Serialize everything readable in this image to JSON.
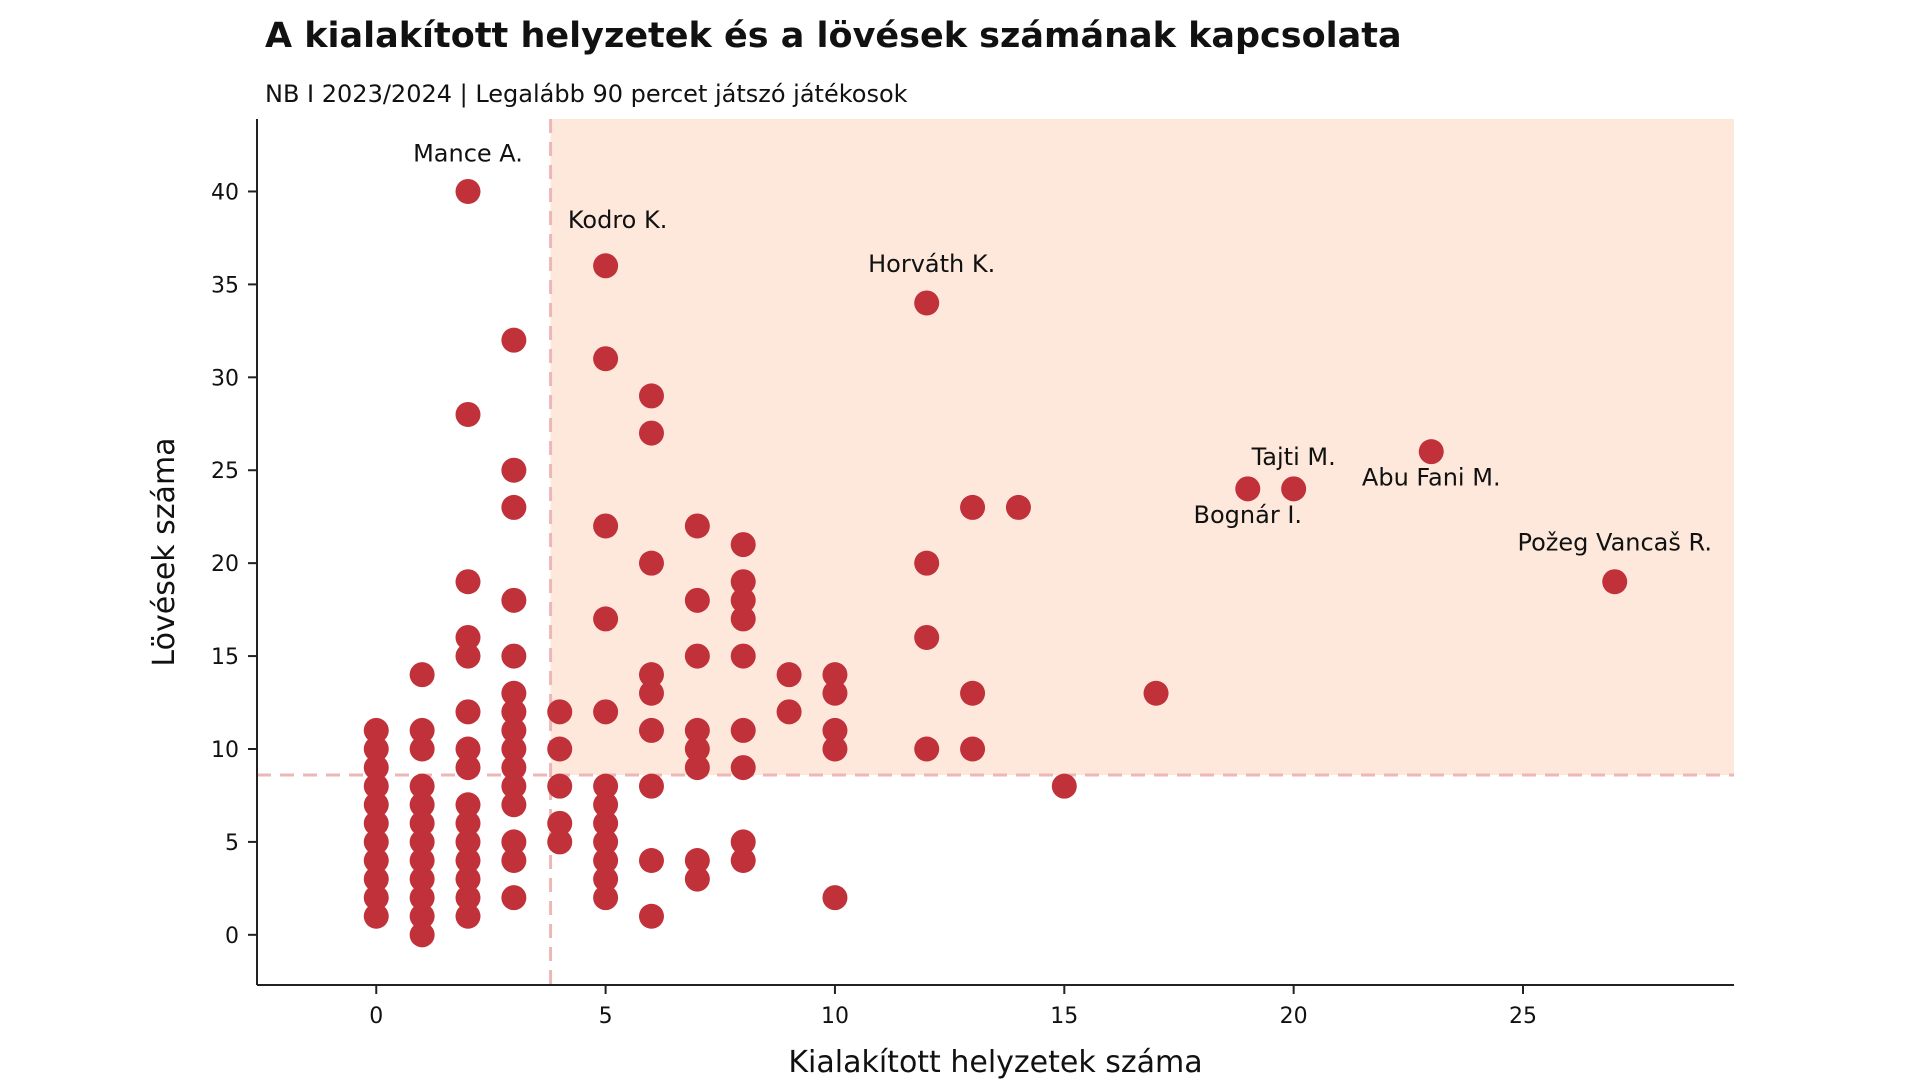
{
  "colors": {
    "point": "#c0313a",
    "highlight_region": "#fde8db",
    "threshold_line": "#eeb7b7",
    "axis": "#222222"
  },
  "chart_data": {
    "type": "scatter",
    "title": "A kialakított helyzetek és a lövések számának kapcsolata",
    "subtitle": "NB I 2023/2024 | Legalább 90 percet játszó játékosok",
    "xlabel": "Kialakított helyzetek száma",
    "ylabel": "Lövések száma",
    "xlim": [
      -2.6,
      29.6
    ],
    "ylim": [
      -2.7,
      43.9
    ],
    "xticks": [
      0,
      5,
      10,
      15,
      20,
      25
    ],
    "yticks": [
      0,
      5,
      10,
      15,
      20,
      25,
      30,
      35,
      40
    ],
    "thresholds": {
      "x": 3.8,
      "y": 8.6
    },
    "highlight": "region x > 3.8 and y > 8.6",
    "grid": false,
    "points": [
      [
        0,
        1
      ],
      [
        0,
        2
      ],
      [
        0,
        3
      ],
      [
        0,
        4
      ],
      [
        0,
        5
      ],
      [
        0,
        6
      ],
      [
        0,
        7
      ],
      [
        0,
        8
      ],
      [
        0,
        9
      ],
      [
        0,
        10
      ],
      [
        0,
        11
      ],
      [
        1,
        0
      ],
      [
        1,
        1
      ],
      [
        1,
        2
      ],
      [
        1,
        3
      ],
      [
        1,
        4
      ],
      [
        1,
        5
      ],
      [
        1,
        6
      ],
      [
        1,
        7
      ],
      [
        1,
        8
      ],
      [
        1,
        10
      ],
      [
        1,
        11
      ],
      [
        1,
        14
      ],
      [
        2,
        1
      ],
      [
        2,
        2
      ],
      [
        2,
        3
      ],
      [
        2,
        4
      ],
      [
        2,
        5
      ],
      [
        2,
        6
      ],
      [
        2,
        7
      ],
      [
        2,
        9
      ],
      [
        2,
        10
      ],
      [
        2,
        12
      ],
      [
        2,
        15
      ],
      [
        2,
        16
      ],
      [
        2,
        19
      ],
      [
        2,
        28
      ],
      [
        2,
        40
      ],
      [
        3,
        2
      ],
      [
        3,
        4
      ],
      [
        3,
        5
      ],
      [
        3,
        7
      ],
      [
        3,
        8
      ],
      [
        3,
        9
      ],
      [
        3,
        10
      ],
      [
        3,
        11
      ],
      [
        3,
        12
      ],
      [
        3,
        13
      ],
      [
        3,
        15
      ],
      [
        3,
        18
      ],
      [
        3,
        23
      ],
      [
        3,
        25
      ],
      [
        3,
        32
      ],
      [
        4,
        5
      ],
      [
        4,
        6
      ],
      [
        4,
        8
      ],
      [
        4,
        10
      ],
      [
        4,
        12
      ],
      [
        5,
        2
      ],
      [
        5,
        3
      ],
      [
        5,
        4
      ],
      [
        5,
        5
      ],
      [
        5,
        6
      ],
      [
        5,
        7
      ],
      [
        5,
        8
      ],
      [
        5,
        12
      ],
      [
        5,
        17
      ],
      [
        5,
        22
      ],
      [
        5,
        31
      ],
      [
        5,
        36
      ],
      [
        6,
        1
      ],
      [
        6,
        4
      ],
      [
        6,
        8
      ],
      [
        6,
        11
      ],
      [
        6,
        13
      ],
      [
        6,
        14
      ],
      [
        6,
        20
      ],
      [
        6,
        27
      ],
      [
        6,
        29
      ],
      [
        7,
        3
      ],
      [
        7,
        4
      ],
      [
        7,
        9
      ],
      [
        7,
        10
      ],
      [
        7,
        11
      ],
      [
        7,
        15
      ],
      [
        7,
        18
      ],
      [
        7,
        22
      ],
      [
        8,
        4
      ],
      [
        8,
        5
      ],
      [
        8,
        9
      ],
      [
        8,
        11
      ],
      [
        8,
        15
      ],
      [
        8,
        17
      ],
      [
        8,
        18
      ],
      [
        8,
        19
      ],
      [
        8,
        21
      ],
      [
        9,
        12
      ],
      [
        9,
        14
      ],
      [
        10,
        2
      ],
      [
        10,
        10
      ],
      [
        10,
        11
      ],
      [
        10,
        13
      ],
      [
        10,
        14
      ],
      [
        12,
        10
      ],
      [
        12,
        16
      ],
      [
        12,
        20
      ],
      [
        12,
        34
      ],
      [
        13,
        10
      ],
      [
        13,
        13
      ],
      [
        13,
        23
      ],
      [
        14,
        23
      ],
      [
        15,
        8
      ],
      [
        17,
        13
      ],
      [
        19,
        24
      ],
      [
        20,
        24
      ],
      [
        23,
        26
      ],
      [
        27,
        19
      ]
    ],
    "annotations": [
      {
        "label": "Mance A.",
        "x": 2,
        "y": 40,
        "anchor": "middle",
        "dx": 0,
        "dy": -30
      },
      {
        "label": "Kodro K.",
        "x": 5,
        "y": 36,
        "anchor": "middle",
        "dx": 12,
        "dy": -38
      },
      {
        "label": "Horváth K.",
        "x": 12,
        "y": 34,
        "anchor": "middle",
        "dx": 5,
        "dy": -31
      },
      {
        "label": "Tajti M.",
        "x": 20,
        "y": 24,
        "anchor": "middle",
        "dx": 0,
        "dy": -24
      },
      {
        "label": "Bognár I.",
        "x": 19,
        "y": 24,
        "anchor": "middle",
        "dx": 0,
        "dy": 34
      },
      {
        "label": "Abu Fani M.",
        "x": 23,
        "y": 26,
        "anchor": "middle",
        "dx": 0,
        "dy": 34
      },
      {
        "label": "Požeg Vancaš R.",
        "x": 27,
        "y": 19,
        "anchor": "middle",
        "dx": 0,
        "dy": -31
      }
    ]
  }
}
